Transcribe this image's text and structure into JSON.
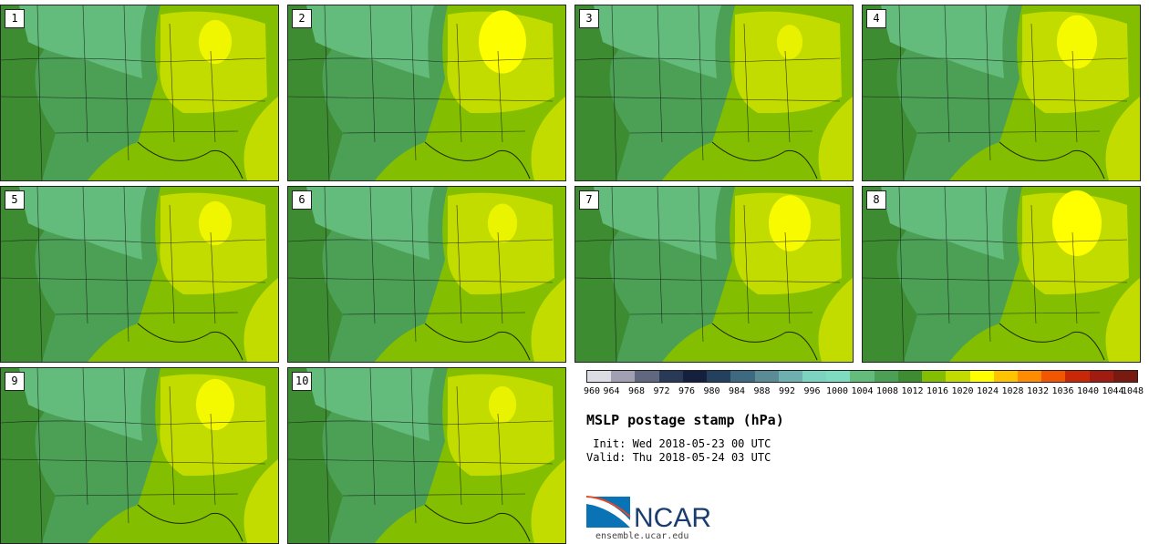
{
  "title": "MSLP postage stamp (hPa)",
  "init_text": " Init: Wed 2018-05-23 00 UTC",
  "valid_text": "Valid: Thu 2018-05-24 03 UTC",
  "logo_text": "NCAR",
  "url": "ensemble.ucar.edu",
  "colorbar": {
    "ticks": [
      "960",
      "964",
      "968",
      "972",
      "976",
      "980",
      "984",
      "988",
      "992",
      "996",
      "1000",
      "1004",
      "1008",
      "1012",
      "1016",
      "1020",
      "1024",
      "1028",
      "1032",
      "1036",
      "1040",
      "1044",
      "1048"
    ],
    "colors": [
      "#dcdce4",
      "#a0a0b2",
      "#606880",
      "#283a58",
      "#14203e",
      "#23405e",
      "#3d6a80",
      "#5b8c96",
      "#6eb0b0",
      "#7cd4c0",
      "#7fdcc0",
      "#64bc7c",
      "#4ca056",
      "#3d8c32",
      "#83bf00",
      "#c2dc00",
      "#ffff00",
      "#ffc400",
      "#ff8c00",
      "#f25600",
      "#c82808",
      "#a01c10",
      "#781a10"
    ]
  },
  "panels": [
    {
      "label": "1",
      "high": 0.55
    },
    {
      "label": "2",
      "high": 0.95
    },
    {
      "label": "3",
      "high": 0.35
    },
    {
      "label": "4",
      "high": 0.75
    },
    {
      "label": "5",
      "high": 0.55
    },
    {
      "label": "6",
      "high": 0.45
    },
    {
      "label": "7",
      "high": 0.8
    },
    {
      "label": "8",
      "high": 1.0
    },
    {
      "label": "9",
      "high": 0.7
    },
    {
      "label": "10",
      "high": 0.4
    }
  ]
}
